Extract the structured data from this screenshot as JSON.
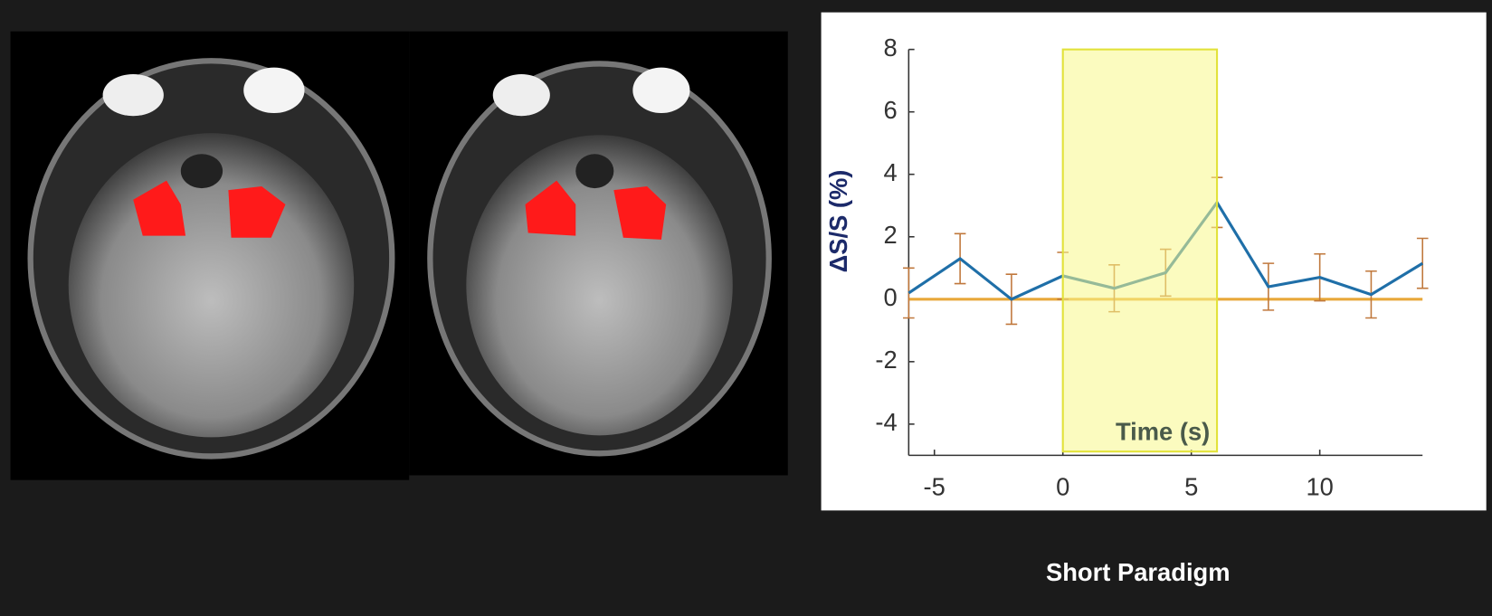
{
  "chart_data": {
    "type": "line",
    "x": [
      -6,
      -4,
      -2,
      0,
      2,
      4,
      6,
      8,
      10,
      12,
      14
    ],
    "values": [
      0.2,
      1.3,
      0,
      0.75,
      0.35,
      0.85,
      3.1,
      0.4,
      0.7,
      0.15,
      1.15
    ],
    "errors": [
      0.8,
      0.8,
      0.8,
      0.75,
      0.75,
      0.75,
      0.8,
      0.75,
      0.75,
      0.75,
      0.8
    ],
    "color": "#1f6fa8",
    "error_color": "#c0783c",
    "baseline": 0,
    "baseline_color": "#e8a83a",
    "shaded_span": [
      0,
      6
    ],
    "shade_color": "#f7f78a",
    "xlim": [
      -6,
      14
    ],
    "ylim": [
      -5,
      8
    ],
    "xticks": [
      -5,
      0,
      5,
      10
    ],
    "yticks": [
      -4,
      -2,
      0,
      2,
      4,
      6,
      8
    ],
    "xlabel": "Time (s)",
    "ylabel": "ΔS/S (%)",
    "caption": "Short Paradigm"
  }
}
